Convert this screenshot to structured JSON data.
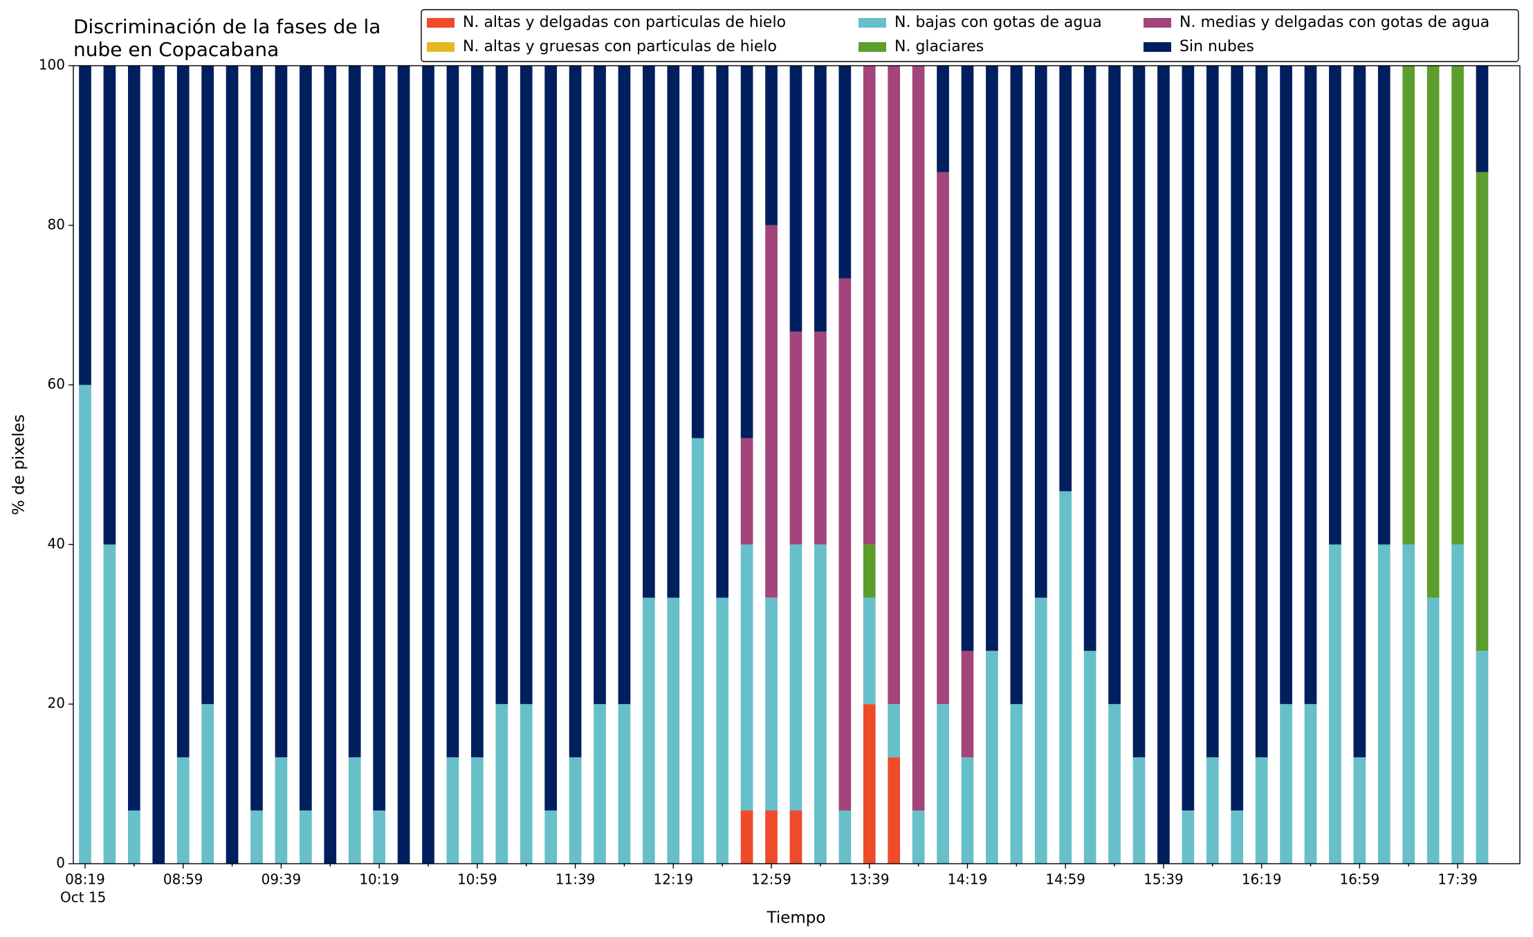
{
  "chart_data": {
    "type": "stacked_bar",
    "title": [
      "Discriminación de la fases de la",
      "nube en Copacabana"
    ],
    "x_label": "Tiempo",
    "y_label": "% de pixeles",
    "x_date_label": "Oct 15",
    "categories": [
      "08:19",
      null,
      null,
      null,
      "08:59",
      null,
      null,
      null,
      "09:39",
      null,
      null,
      null,
      "10:19",
      null,
      null,
      null,
      "10:59",
      null,
      null,
      null,
      "11:39",
      null,
      null,
      null,
      "12:19",
      null,
      null,
      null,
      "12:59",
      null,
      null,
      null,
      "13:39",
      null,
      null,
      null,
      "14:19",
      null,
      null,
      null,
      "14:59",
      null,
      null,
      null,
      "15:39",
      null,
      null,
      null,
      "16:19",
      null,
      null,
      null,
      "16:59",
      null,
      null,
      null,
      "17:39",
      null
    ],
    "ylim": [
      0,
      100
    ],
    "yticks": [
      0,
      20,
      40,
      60,
      80,
      100
    ],
    "legend": "top-right",
    "series": [
      {
        "name": "N. altas y delgadas con particulas de hielo",
        "color": "#ee4b2b",
        "values": [
          0,
          0,
          0,
          0,
          0,
          0,
          0,
          0,
          0,
          0,
          0,
          0,
          0,
          0,
          0,
          0,
          0,
          0,
          0,
          0,
          0,
          0,
          0,
          0,
          0,
          0,
          0,
          6.67,
          6.67,
          6.67,
          0,
          0,
          20,
          13.33,
          0,
          0,
          0,
          0,
          0,
          0,
          0,
          0,
          0,
          0,
          0,
          0,
          0,
          0,
          0,
          0,
          0,
          0,
          0,
          0,
          0,
          0,
          0,
          0
        ]
      },
      {
        "name": "N. altas y gruesas con particulas de hielo",
        "color": "#e6b820",
        "values": [
          0,
          0,
          0,
          0,
          0,
          0,
          0,
          0,
          0,
          0,
          0,
          0,
          0,
          0,
          0,
          0,
          0,
          0,
          0,
          0,
          0,
          0,
          0,
          0,
          0,
          0,
          0,
          0,
          0,
          0,
          0,
          0,
          0,
          0,
          0,
          0,
          0,
          0,
          0,
          0,
          0,
          0,
          0,
          0,
          0,
          0,
          0,
          0,
          0,
          0,
          0,
          0,
          0,
          0,
          0,
          0,
          0,
          0
        ]
      },
      {
        "name": "N. bajas con gotas de agua",
        "color": "#67bfca",
        "values": [
          60,
          40,
          6.67,
          0,
          13.33,
          20,
          0,
          6.67,
          13.33,
          6.67,
          0,
          13.33,
          6.67,
          0,
          0,
          13.33,
          13.33,
          20,
          20,
          6.67,
          13.33,
          20,
          20,
          33.33,
          33.33,
          53.33,
          33.33,
          33.33,
          26.67,
          33.33,
          40,
          6.67,
          13.33,
          6.67,
          6.67,
          20,
          13.33,
          26.67,
          20,
          33.33,
          46.67,
          26.67,
          20,
          13.33,
          0,
          6.67,
          13.33,
          6.67,
          13.33,
          20,
          20,
          40,
          13.33,
          40,
          40,
          33.33,
          40,
          26.67
        ]
      },
      {
        "name": "N. glaciares",
        "color": "#5c9e2e",
        "values": [
          0,
          0,
          0,
          0,
          0,
          0,
          0,
          0,
          0,
          0,
          0,
          0,
          0,
          0,
          0,
          0,
          0,
          0,
          0,
          0,
          0,
          0,
          0,
          0,
          0,
          0,
          0,
          0,
          0,
          0,
          0,
          0,
          6.67,
          0,
          0,
          0,
          0,
          0,
          0,
          0,
          0,
          0,
          0,
          0,
          0,
          0,
          0,
          0,
          0,
          0,
          0,
          0,
          0,
          0,
          60,
          66.67,
          60,
          60
        ]
      },
      {
        "name": "N. medias y delgadas con gotas de agua",
        "color": "#a3457a",
        "values": [
          0,
          0,
          0,
          0,
          0,
          0,
          0,
          0,
          0,
          0,
          0,
          0,
          0,
          0,
          0,
          0,
          0,
          0,
          0,
          0,
          0,
          0,
          0,
          0,
          0,
          0,
          0,
          13.33,
          46.67,
          26.67,
          26.67,
          66.67,
          60,
          80,
          93.33,
          66.67,
          13.33,
          0,
          0,
          0,
          0,
          0,
          0,
          0,
          0,
          0,
          0,
          0,
          0,
          0,
          0,
          0,
          0,
          0,
          0,
          0,
          0,
          0
        ]
      },
      {
        "name": "Sin nubes",
        "color": "#001f5f",
        "values": [
          40,
          60,
          93.33,
          100,
          86.67,
          80,
          100,
          93.33,
          86.67,
          93.33,
          100,
          86.67,
          93.33,
          100,
          100,
          86.67,
          86.67,
          80,
          80,
          93.33,
          86.67,
          80,
          80,
          66.67,
          66.67,
          46.67,
          66.67,
          46.67,
          20,
          33.33,
          33.33,
          26.67,
          0,
          0,
          0,
          13.33,
          73.33,
          73.33,
          80,
          66.67,
          53.33,
          73.33,
          80,
          86.67,
          100,
          93.33,
          86.67,
          93.33,
          86.67,
          80,
          80,
          60,
          86.67,
          60,
          0,
          0,
          0,
          13.33
        ]
      }
    ]
  }
}
